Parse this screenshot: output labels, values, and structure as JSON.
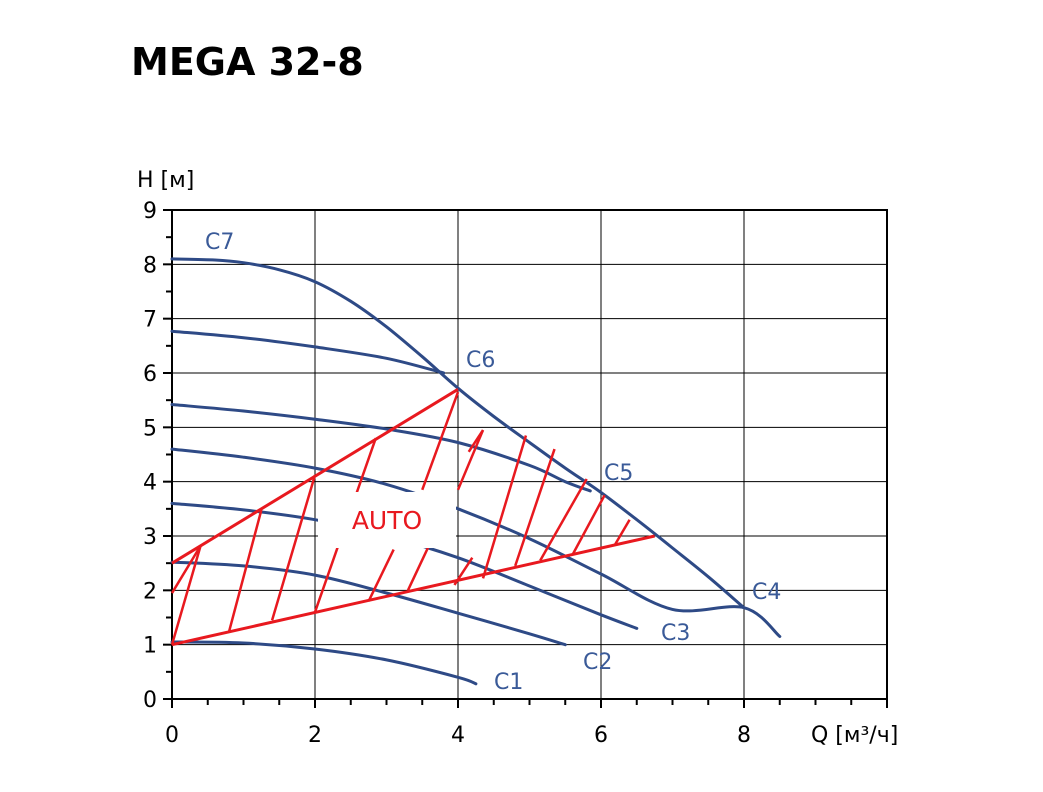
{
  "chart_data": {
    "type": "line",
    "title": "MEGA 32-8",
    "xlabel": "Q [м³/ч]",
    "ylabel": "H [м]",
    "xlim": [
      0,
      10
    ],
    "ylim": [
      0,
      9
    ],
    "x_ticks": [
      0,
      2,
      4,
      6,
      8
    ],
    "y_ticks": [
      0,
      1,
      2,
      3,
      4,
      5,
      6,
      7,
      8,
      9
    ],
    "grid": true,
    "series": [
      {
        "name": "C1",
        "points": [
          [
            0,
            1.05
          ],
          [
            1,
            1.03
          ],
          [
            2,
            0.92
          ],
          [
            3,
            0.72
          ],
          [
            4,
            0.4
          ],
          [
            4.25,
            0.28
          ]
        ]
      },
      {
        "name": "C2",
        "points": [
          [
            0,
            2.52
          ],
          [
            1,
            2.45
          ],
          [
            2,
            2.28
          ],
          [
            3,
            1.95
          ],
          [
            4,
            1.58
          ],
          [
            5,
            1.2
          ],
          [
            5.5,
            1.0
          ]
        ]
      },
      {
        "name": "C3",
        "points": [
          [
            0,
            3.6
          ],
          [
            1,
            3.48
          ],
          [
            2,
            3.3
          ],
          [
            3,
            3.0
          ],
          [
            4,
            2.6
          ],
          [
            5,
            2.08
          ],
          [
            6,
            1.55
          ],
          [
            6.5,
            1.3
          ]
        ]
      },
      {
        "name": "C4",
        "points": [
          [
            0,
            4.6
          ],
          [
            1,
            4.45
          ],
          [
            2,
            4.25
          ],
          [
            3,
            3.95
          ],
          [
            4,
            3.5
          ],
          [
            5,
            2.95
          ],
          [
            6,
            2.3
          ],
          [
            7,
            1.65
          ],
          [
            8,
            1.68
          ],
          [
            8.5,
            1.15
          ]
        ]
      },
      {
        "name": "C5",
        "points": [
          [
            0,
            5.42
          ],
          [
            1,
            5.3
          ],
          [
            2,
            5.15
          ],
          [
            3,
            4.97
          ],
          [
            4,
            4.72
          ],
          [
            5,
            4.3
          ],
          [
            5.5,
            4.0
          ],
          [
            5.85,
            3.83
          ]
        ]
      },
      {
        "name": "C6",
        "points": [
          [
            0,
            6.77
          ],
          [
            1,
            6.65
          ],
          [
            2,
            6.48
          ],
          [
            3,
            6.27
          ],
          [
            3.8,
            6.0
          ]
        ]
      },
      {
        "name": "C7",
        "points": [
          [
            0,
            8.1
          ],
          [
            0.6,
            8.08
          ],
          [
            1,
            8.03
          ],
          [
            1.5,
            7.9
          ],
          [
            2,
            7.68
          ],
          [
            2.5,
            7.32
          ],
          [
            3,
            6.85
          ],
          [
            3.5,
            6.3
          ],
          [
            4,
            5.72
          ],
          [
            4.5,
            5.2
          ],
          [
            5,
            4.72
          ],
          [
            5.5,
            4.25
          ],
          [
            6,
            3.8
          ],
          [
            6.5,
            3.3
          ],
          [
            7,
            2.78
          ],
          [
            7.5,
            2.25
          ],
          [
            8,
            1.68
          ]
        ]
      }
    ],
    "labels": {
      "c7": "C7",
      "c6": "C6",
      "c5": "C5",
      "c4": "C4",
      "c3": "C3",
      "c2": "C2",
      "c1": "C1"
    },
    "auto_region": {
      "label": "AUTO",
      "color": "#e8191f",
      "upper": [
        [
          0,
          2.5
        ],
        [
          4,
          5.7
        ]
      ],
      "lower": [
        [
          0,
          1.0
        ],
        [
          6.75,
          3.0
        ]
      ]
    },
    "curve_color": "#2e4a86",
    "label_color": "#3a5a98"
  }
}
